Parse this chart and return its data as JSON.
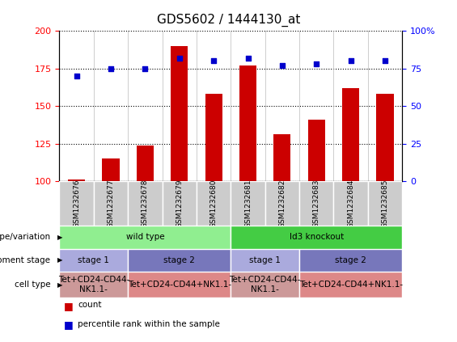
{
  "title": "GDS5602 / 1444130_at",
  "samples": [
    "GSM1232676",
    "GSM1232677",
    "GSM1232678",
    "GSM1232679",
    "GSM1232680",
    "GSM1232681",
    "GSM1232682",
    "GSM1232683",
    "GSM1232684",
    "GSM1232685"
  ],
  "counts": [
    101,
    115,
    124,
    190,
    158,
    177,
    131,
    141,
    162,
    158
  ],
  "percentiles": [
    70,
    75,
    75,
    82,
    80,
    82,
    77,
    78,
    80,
    80
  ],
  "ylim_left": [
    100,
    200
  ],
  "ylim_right": [
    0,
    100
  ],
  "yticks_left": [
    100,
    125,
    150,
    175,
    200
  ],
  "yticks_right": [
    0,
    25,
    50,
    75,
    100
  ],
  "ytick_right_labels": [
    "0",
    "25",
    "50",
    "75",
    "100%"
  ],
  "bar_color": "#cc0000",
  "dot_color": "#0000cc",
  "genotype_groups": [
    {
      "label": "wild type",
      "start": 0,
      "end": 5,
      "color": "#90ee90"
    },
    {
      "label": "Id3 knockout",
      "start": 5,
      "end": 10,
      "color": "#44cc44"
    }
  ],
  "dev_stage_groups": [
    {
      "label": "stage 1",
      "start": 0,
      "end": 2,
      "color": "#aaaadd"
    },
    {
      "label": "stage 2",
      "start": 2,
      "end": 5,
      "color": "#7777bb"
    },
    {
      "label": "stage 1",
      "start": 5,
      "end": 7,
      "color": "#aaaadd"
    },
    {
      "label": "stage 2",
      "start": 7,
      "end": 10,
      "color": "#7777bb"
    }
  ],
  "cell_type_groups": [
    {
      "label": "Tet+CD24-CD44-\nNK1.1-",
      "start": 0,
      "end": 2,
      "color": "#cc9999"
    },
    {
      "label": "Tet+CD24-CD44+NK1.1-",
      "start": 2,
      "end": 5,
      "color": "#dd8888"
    },
    {
      "label": "Tet+CD24-CD44-\nNK1.1-",
      "start": 5,
      "end": 7,
      "color": "#cc9999"
    },
    {
      "label": "Tet+CD24-CD44+NK1.1-",
      "start": 7,
      "end": 10,
      "color": "#dd8888"
    }
  ],
  "row_labels": [
    "genotype/variation",
    "development stage",
    "cell type"
  ],
  "legend_count_label": "count",
  "legend_pct_label": "percentile rank within the sample",
  "header_bg": "#cccccc"
}
